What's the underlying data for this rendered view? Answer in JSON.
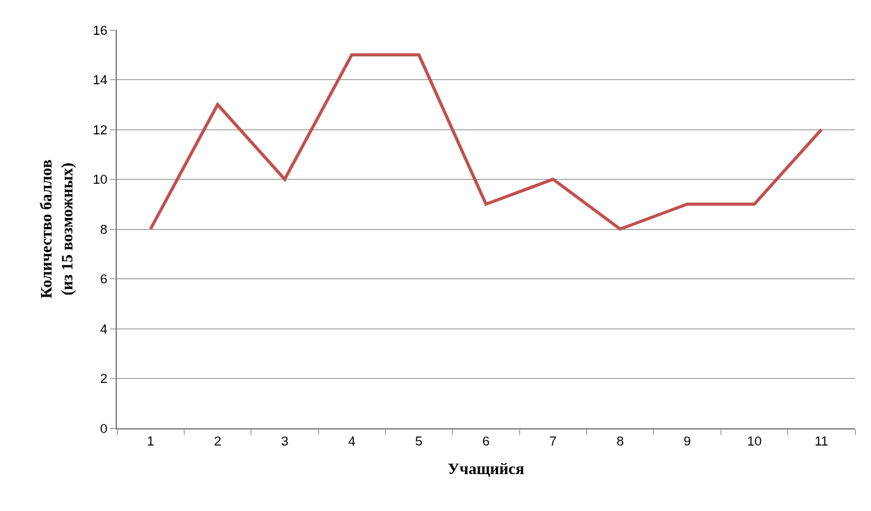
{
  "chart_data": {
    "type": "line",
    "xlabel": "Учащийся",
    "ylabel": "Количество баллов\n(из 15 возможных)",
    "categories": [
      "1",
      "2",
      "3",
      "4",
      "5",
      "6",
      "7",
      "8",
      "9",
      "10",
      "11"
    ],
    "series": [
      {
        "color": "#c0504d",
        "values": [
          8,
          13,
          10,
          15,
          15,
          9,
          10,
          8,
          9,
          9,
          12
        ]
      }
    ],
    "ylim": [
      0,
      16
    ],
    "yticks": [
      0,
      2,
      4,
      6,
      8,
      10,
      12,
      14,
      16
    ],
    "grid": "y",
    "marker": "none",
    "line_style": "solid"
  }
}
